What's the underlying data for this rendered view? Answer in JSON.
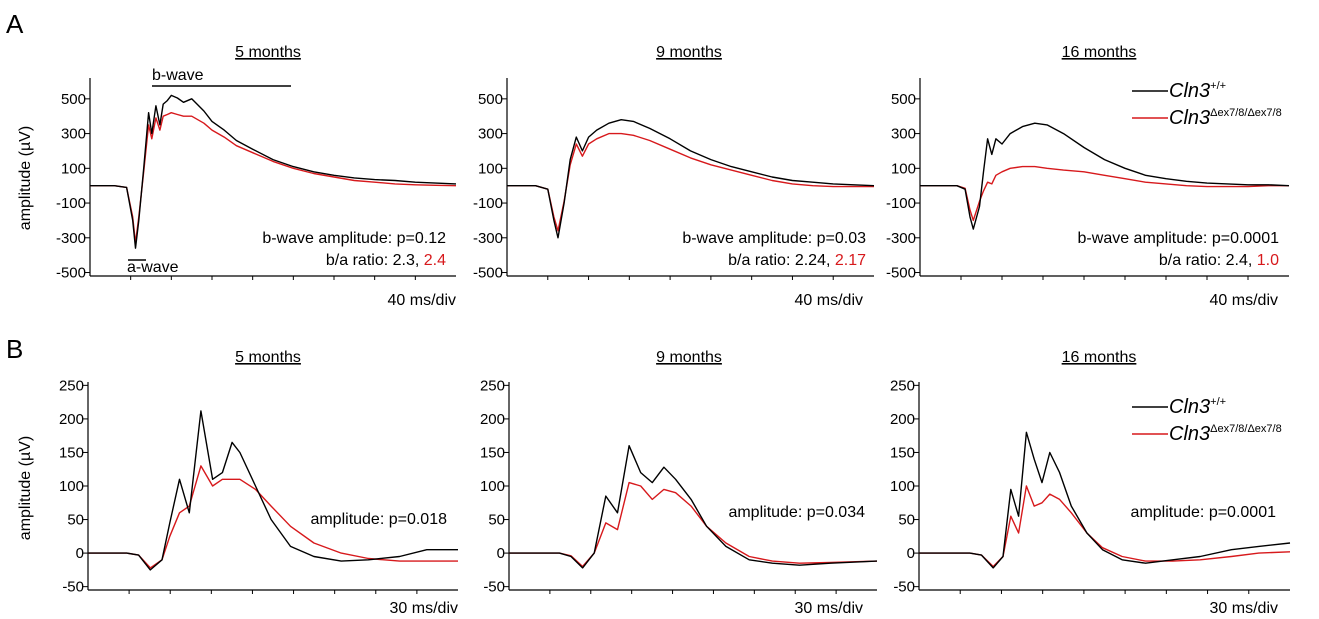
{
  "panels": {
    "A": {
      "label": "A",
      "ylabel": "amplitude (µV)",
      "xscale_label": "40 ms/div",
      "yticks": [
        500,
        300,
        100,
        -100,
        -300,
        -500
      ],
      "ylim": [
        -520,
        620
      ],
      "legend": {
        "wt": "Cln3",
        "wt_sup": "+/+",
        "mut": "Cln3",
        "mut_sup": "Δex7/8/Δex7/8"
      },
      "annotations": {
        "bwave": "b-wave",
        "awave": "a-wave"
      }
    },
    "B": {
      "label": "B",
      "ylabel": "amplitude (µV)",
      "xscale_label": "30 ms/div",
      "yticks": [
        250,
        200,
        150,
        100,
        50,
        0,
        -50
      ],
      "ylim": [
        -55,
        255
      ],
      "legend": {
        "wt": "Cln3",
        "wt_sup": "+/+",
        "mut": "Cln3",
        "mut_sup": "Δex7/8/Δex7/8"
      }
    }
  },
  "colors": {
    "wt": "#000000",
    "mut": "#d7191c"
  },
  "chart_data": [
    {
      "type": "line",
      "panel": "A",
      "title": "5 months",
      "xlabel": "",
      "ylabel": "amplitude (µV)",
      "ylim": [
        -520,
        620
      ],
      "stats": {
        "line1": "b-wave amplitude: p=0.12",
        "line2_prefix": "b/a ratio: 2.3, ",
        "line2_red": "2.4"
      },
      "series": [
        {
          "x": [
            0,
            0.6,
            0.9,
            1.05,
            1.12,
            1.2,
            1.32,
            1.44,
            1.52,
            1.62,
            1.72,
            1.8,
            1.9,
            2,
            2.15,
            2.3,
            2.5,
            2.8,
            3,
            3.3,
            3.6,
            4,
            4.5,
            5,
            5.5,
            6,
            6.5,
            7,
            7.5,
            8,
            8.5,
            9
          ],
          "y": [
            0,
            0,
            -10,
            -200,
            -360,
            -200,
            100,
            420,
            300,
            460,
            350,
            470,
            490,
            520,
            505,
            480,
            500,
            430,
            370,
            320,
            260,
            210,
            150,
            110,
            80,
            60,
            45,
            35,
            30,
            20,
            15,
            10
          ]
        },
        {
          "x": [
            0,
            0.6,
            0.9,
            1.05,
            1.12,
            1.2,
            1.32,
            1.44,
            1.52,
            1.62,
            1.72,
            1.8,
            1.9,
            2,
            2.15,
            2.3,
            2.5,
            2.8,
            3,
            3.3,
            3.6,
            4,
            4.5,
            5,
            5.5,
            6,
            6.5,
            7,
            7.5,
            8,
            8.5,
            9
          ],
          "y": [
            0,
            0,
            -10,
            -180,
            -330,
            -180,
            80,
            350,
            270,
            390,
            320,
            400,
            410,
            420,
            410,
            400,
            400,
            360,
            320,
            280,
            230,
            190,
            140,
            100,
            70,
            50,
            30,
            20,
            10,
            5,
            2,
            0
          ]
        }
      ]
    },
    {
      "type": "line",
      "panel": "A",
      "title": "9 months",
      "xlabel": "",
      "ylabel": "amplitude (µV)",
      "ylim": [
        -520,
        620
      ],
      "stats": {
        "line1": "b-wave amplitude: p=0.03",
        "line2_prefix": "b/a ratio: 2.24, ",
        "line2_red": "2.17"
      },
      "series": [
        {
          "x": [
            0,
            0.7,
            1.0,
            1.15,
            1.25,
            1.4,
            1.55,
            1.7,
            1.85,
            2.0,
            2.2,
            2.5,
            2.8,
            3.1,
            3.5,
            4,
            4.5,
            5,
            5.5,
            6,
            6.5,
            7,
            7.5,
            8,
            8.5,
            9
          ],
          "y": [
            0,
            0,
            -20,
            -200,
            -300,
            -100,
            150,
            280,
            200,
            280,
            320,
            360,
            380,
            370,
            330,
            270,
            200,
            150,
            110,
            80,
            50,
            30,
            20,
            10,
            5,
            0
          ]
        },
        {
          "x": [
            0,
            0.7,
            1.0,
            1.15,
            1.25,
            1.4,
            1.55,
            1.7,
            1.85,
            2.0,
            2.2,
            2.5,
            2.8,
            3.1,
            3.5,
            4,
            4.5,
            5,
            5.5,
            6,
            6.5,
            7,
            7.5,
            8,
            8.5,
            9
          ],
          "y": [
            0,
            0,
            -20,
            -180,
            -260,
            -90,
            120,
            240,
            170,
            240,
            270,
            300,
            300,
            290,
            260,
            210,
            160,
            120,
            90,
            60,
            30,
            10,
            0,
            -5,
            -5,
            -5
          ]
        }
      ]
    },
    {
      "type": "line",
      "panel": "A",
      "title": "16 months",
      "xlabel": "",
      "ylabel": "amplitude (µV)",
      "ylim": [
        -520,
        620
      ],
      "stats": {
        "line1": "b-wave amplitude: p=0.0001",
        "line2_prefix": "b/a ratio: 2.4, ",
        "line2_red": "1.0"
      },
      "series": [
        {
          "x": [
            0,
            0.9,
            1.1,
            1.22,
            1.3,
            1.45,
            1.55,
            1.65,
            1.75,
            1.85,
            2.0,
            2.2,
            2.5,
            2.8,
            3.1,
            3.5,
            4,
            4.5,
            5,
            5.5,
            6,
            6.5,
            7,
            7.5,
            8,
            8.5,
            9
          ],
          "y": [
            0,
            0,
            -20,
            -180,
            -250,
            -120,
            80,
            270,
            180,
            270,
            240,
            300,
            340,
            360,
            350,
            300,
            220,
            150,
            100,
            60,
            40,
            25,
            15,
            10,
            5,
            5,
            0
          ]
        },
        {
          "x": [
            0,
            0.9,
            1.1,
            1.22,
            1.3,
            1.45,
            1.55,
            1.65,
            1.75,
            1.85,
            2.0,
            2.2,
            2.5,
            2.8,
            3.1,
            3.5,
            4,
            4.5,
            5,
            5.5,
            6,
            6.5,
            7,
            7.5,
            8,
            8.5,
            9
          ],
          "y": [
            0,
            0,
            -15,
            -140,
            -200,
            -90,
            -30,
            20,
            10,
            60,
            80,
            100,
            110,
            110,
            100,
            90,
            80,
            60,
            40,
            20,
            10,
            0,
            -5,
            -5,
            -5,
            0,
            0
          ]
        }
      ]
    },
    {
      "type": "line",
      "panel": "B",
      "title": "5 months",
      "xlabel": "",
      "ylabel": "amplitude (µV)",
      "ylim": [
        -55,
        255
      ],
      "stats": {
        "line1": "amplitude: p=0.018"
      },
      "series": [
        {
          "x": [
            0,
            1.0,
            1.3,
            1.6,
            1.9,
            2.1,
            2.35,
            2.6,
            2.9,
            3.2,
            3.45,
            3.7,
            3.9,
            4.3,
            4.7,
            5.2,
            5.8,
            6.5,
            7.2,
            8,
            8.7,
            9.5
          ],
          "y": [
            0,
            0,
            -3,
            -25,
            -10,
            45,
            110,
            60,
            212,
            110,
            120,
            165,
            150,
            100,
            50,
            10,
            -5,
            -12,
            -10,
            -5,
            5,
            5
          ]
        },
        {
          "x": [
            0,
            1.0,
            1.3,
            1.6,
            1.9,
            2.1,
            2.35,
            2.6,
            2.9,
            3.2,
            3.45,
            3.7,
            3.9,
            4.3,
            4.7,
            5.2,
            5.8,
            6.5,
            7.2,
            8,
            8.7,
            9.5
          ],
          "y": [
            0,
            0,
            -3,
            -22,
            -10,
            25,
            60,
            70,
            130,
            100,
            110,
            110,
            110,
            95,
            70,
            40,
            15,
            0,
            -8,
            -12,
            -12,
            -12
          ]
        }
      ]
    },
    {
      "type": "line",
      "panel": "B",
      "title": "9 months",
      "xlabel": "",
      "ylabel": "amplitude (µV)",
      "ylim": [
        -55,
        255
      ],
      "stats": {
        "line1": "amplitude: p=0.034"
      },
      "series": [
        {
          "x": [
            0,
            1.3,
            1.6,
            1.9,
            2.2,
            2.5,
            2.8,
            3.1,
            3.4,
            3.7,
            4,
            4.3,
            4.7,
            5.1,
            5.6,
            6.2,
            6.8,
            7.5,
            8.3,
            9.5
          ],
          "y": [
            0,
            0,
            -5,
            -22,
            0,
            85,
            60,
            160,
            120,
            105,
            128,
            110,
            80,
            40,
            10,
            -10,
            -15,
            -18,
            -15,
            -12
          ]
        },
        {
          "x": [
            0,
            1.3,
            1.6,
            1.9,
            2.2,
            2.5,
            2.8,
            3.1,
            3.4,
            3.7,
            4,
            4.3,
            4.7,
            5.1,
            5.6,
            6.2,
            6.8,
            7.5,
            8.3,
            9.5
          ],
          "y": [
            0,
            0,
            -4,
            -20,
            0,
            45,
            35,
            105,
            100,
            80,
            95,
            90,
            70,
            40,
            15,
            -5,
            -12,
            -15,
            -14,
            -12
          ]
        }
      ]
    },
    {
      "type": "line",
      "panel": "B",
      "title": "16 months",
      "xlabel": "",
      "ylabel": "amplitude (µV)",
      "ylim": [
        -55,
        255
      ],
      "stats": {
        "line1": "amplitude: p=0.0001"
      },
      "series": [
        {
          "x": [
            0,
            1.3,
            1.6,
            1.9,
            2.15,
            2.35,
            2.55,
            2.75,
            2.95,
            3.15,
            3.35,
            3.6,
            3.9,
            4.3,
            4.7,
            5.2,
            5.8,
            6.5,
            7.2,
            8,
            8.7,
            9.5
          ],
          "y": [
            0,
            0,
            -3,
            -22,
            -5,
            95,
            55,
            180,
            140,
            105,
            150,
            120,
            70,
            30,
            5,
            -10,
            -15,
            -10,
            -5,
            5,
            10,
            15
          ]
        },
        {
          "x": [
            0,
            1.3,
            1.6,
            1.9,
            2.15,
            2.35,
            2.55,
            2.75,
            2.95,
            3.15,
            3.35,
            3.6,
            3.9,
            4.3,
            4.7,
            5.2,
            5.8,
            6.5,
            7.2,
            8,
            8.7,
            9.5
          ],
          "y": [
            0,
            0,
            -3,
            -20,
            -5,
            55,
            30,
            100,
            70,
            75,
            88,
            80,
            60,
            30,
            8,
            -5,
            -12,
            -12,
            -10,
            -5,
            0,
            2
          ]
        }
      ]
    }
  ]
}
